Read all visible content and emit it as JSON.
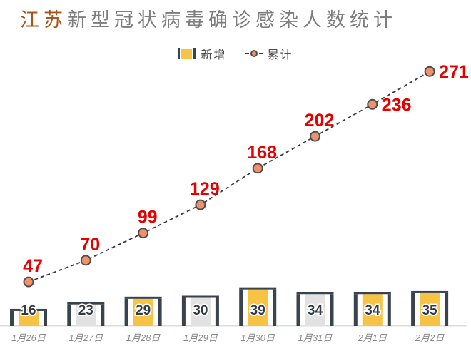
{
  "title": {
    "highlight": "江苏",
    "rest": "新型冠状病毒确诊感染人数统计",
    "full": "江苏新型冠状病毒确诊感染人数统计"
  },
  "legend": {
    "items": [
      {
        "label": "新增",
        "type": "bar"
      },
      {
        "label": "累计",
        "type": "line"
      }
    ],
    "position": "top-center"
  },
  "colors": {
    "title_highlight": "#a4571e",
    "title_rest": "#7d7d7d",
    "bar_yellow": "#f6c344",
    "bar_gray": "#e2e2e2",
    "bar_frame_dark": "#3a424d",
    "bar_value_text": "#323a45",
    "line_dash": "#3a3a3a",
    "marker_fill": "#f0916b",
    "marker_stroke": "#4d4d4d",
    "line_label_red": "#e60000",
    "date_text": "#8a8a8a",
    "axis_line": "#dcdcdc",
    "legend_text": "#4d4d4d"
  },
  "chart_data": {
    "type": "combo-bar-line",
    "title": "江苏新型冠状病毒确诊感染人数统计",
    "categories": [
      "1月26日",
      "1月27日",
      "1月28日",
      "1月29日",
      "1月30日",
      "1月31日",
      "2月1日",
      "2月2日"
    ],
    "series": [
      {
        "name": "新增",
        "type": "bar",
        "values": [
          16,
          23,
          29,
          30,
          39,
          34,
          34,
          35
        ],
        "bar_fill_keys": [
          "bar_yellow",
          "bar_gray",
          "bar_yellow",
          "bar_gray",
          "bar_yellow",
          "bar_gray",
          "bar_yellow",
          "bar_yellow"
        ]
      },
      {
        "name": "累计",
        "type": "line",
        "values": [
          47,
          70,
          99,
          129,
          168,
          202,
          236,
          271
        ],
        "line_style": "dashed",
        "label_placement": [
          "above",
          "above",
          "above",
          "above",
          "above",
          "above",
          "right",
          "right"
        ]
      }
    ],
    "xlabel": "",
    "ylabel": "",
    "ylim": [
      0,
      280
    ],
    "grid": false,
    "y_axis_visible": false,
    "x_axis_line_visible": true,
    "data_labels_visible": true
  }
}
